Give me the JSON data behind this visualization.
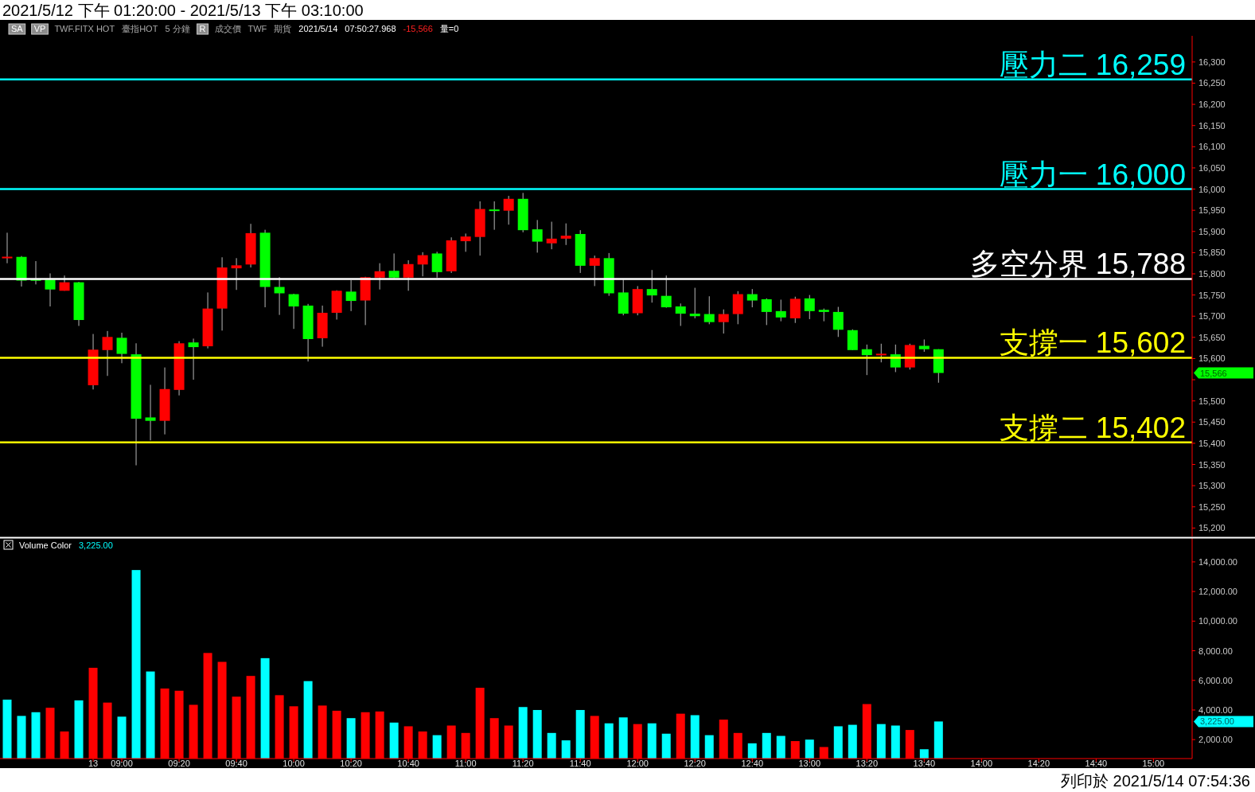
{
  "chart_data": [
    {
      "type": "candlestick",
      "title": "2021/5/12 下午 01:20:00 - 2021/5/13 下午 03:10:00",
      "categories": [
        null,
        null,
        null,
        null,
        null,
        null,
        null,
        null,
        null,
        null,
        null,
        null,
        null,
        null,
        null,
        null,
        null,
        null,
        null,
        null,
        null,
        null,
        null,
        null,
        null,
        null,
        null,
        null,
        null,
        null,
        null,
        null,
        null,
        null,
        null,
        null,
        null,
        null,
        null,
        null,
        null,
        null,
        null,
        null,
        null,
        null,
        null,
        null,
        null,
        null,
        null,
        null,
        null,
        null,
        null,
        null,
        null,
        null,
        null,
        null,
        null,
        null,
        null,
        null,
        null,
        null,
        null,
        null,
        null,
        null,
        null,
        null,
        null,
        null,
        null,
        null,
        null,
        null,
        null,
        null,
        null,
        null,
        null
      ],
      "ohlc": [
        [
          15838,
          15897,
          15825,
          15839
        ],
        [
          15840,
          15842,
          15770,
          15784
        ],
        [
          15786,
          15830,
          15775,
          15785
        ],
        [
          15786,
          15801,
          15723,
          15763
        ],
        [
          15760,
          15796,
          15760,
          15780
        ],
        [
          15780,
          15781,
          15677,
          15691
        ],
        [
          15537,
          15658,
          15527,
          15621
        ],
        [
          15620,
          15665,
          15559,
          15651
        ],
        [
          15649,
          15661,
          15589,
          15611
        ],
        [
          15610,
          15636,
          15348,
          15458
        ],
        [
          15461,
          15538,
          15407,
          15453
        ],
        [
          15453,
          15579,
          15421,
          15528
        ],
        [
          15526,
          15641,
          15513,
          15636
        ],
        [
          15638,
          15647,
          15550,
          15627
        ],
        [
          15629,
          15756,
          15624,
          15718
        ],
        [
          15718,
          15839,
          15666,
          15815
        ],
        [
          15813,
          15837,
          15762,
          15820
        ],
        [
          15822,
          15918,
          15815,
          15896
        ],
        [
          15897,
          15904,
          15721,
          15769
        ],
        [
          15769,
          15792,
          15703,
          15754
        ],
        [
          15752,
          15753,
          15670,
          15723
        ],
        [
          15725,
          15729,
          15593,
          15646
        ],
        [
          15648,
          15725,
          15628,
          15708
        ],
        [
          15708,
          15761,
          15692,
          15760
        ],
        [
          15758,
          15785,
          15712,
          15736
        ],
        [
          15737,
          15793,
          15679,
          15792
        ],
        [
          15791,
          15825,
          15763,
          15806
        ],
        [
          15807,
          15848,
          15790,
          15791
        ],
        [
          15791,
          15832,
          15760,
          15823
        ],
        [
          15822,
          15851,
          15794,
          15844
        ],
        [
          15848,
          15852,
          15791,
          15804
        ],
        [
          15806,
          15886,
          15802,
          15879
        ],
        [
          15877,
          15895,
          15852,
          15888
        ],
        [
          15887,
          15971,
          15843,
          15953
        ],
        [
          15951,
          15971,
          15904,
          15949
        ],
        [
          15949,
          15984,
          15916,
          15977
        ],
        [
          15977,
          15991,
          15898,
          15903
        ],
        [
          15905,
          15927,
          15850,
          15876
        ],
        [
          15872,
          15923,
          15858,
          15883
        ],
        [
          15883,
          15919,
          15868,
          15890
        ],
        [
          15894,
          15903,
          15802,
          15819
        ],
        [
          15819,
          15843,
          15771,
          15837
        ],
        [
          15837,
          15849,
          15748,
          15754
        ],
        [
          15756,
          15786,
          15702,
          15706
        ],
        [
          15707,
          15771,
          15702,
          15764
        ],
        [
          15764,
          15809,
          15732,
          15749
        ],
        [
          15748,
          15796,
          15720,
          15721
        ],
        [
          15723,
          15730,
          15677,
          15706
        ],
        [
          15706,
          15767,
          15695,
          15700
        ],
        [
          15705,
          15747,
          15681,
          15686
        ],
        [
          15686,
          15716,
          15659,
          15705
        ],
        [
          15705,
          15759,
          15681,
          15752
        ],
        [
          15752,
          15764,
          15721,
          15737
        ],
        [
          15740,
          15742,
          15679,
          15710
        ],
        [
          15712,
          15739,
          15688,
          15697
        ],
        [
          15695,
          15746,
          15684,
          15741
        ],
        [
          15742,
          15750,
          15693,
          15712
        ],
        [
          15715,
          15718,
          15688,
          15710
        ],
        [
          15710,
          15722,
          15651,
          15668
        ],
        [
          15667,
          15669,
          15620,
          15620
        ],
        [
          15622,
          15633,
          15561,
          15608
        ],
        [
          15608,
          15635,
          15591,
          15611
        ],
        [
          15610,
          15633,
          15568,
          15579
        ],
        [
          15579,
          15635,
          15574,
          15632
        ],
        [
          15630,
          15645,
          15616,
          15622
        ],
        [
          15622,
          15622,
          15543,
          15566
        ],
        null,
        null,
        null,
        null,
        null,
        null,
        null,
        null,
        null,
        null,
        null,
        null,
        null,
        null,
        null,
        null,
        null
      ],
      "colors": [
        "#ff0000",
        "#00ff00",
        "#00ff00",
        "#00ff00",
        "#ff0000",
        "#00ff00",
        "#ff0000",
        "#ff0000",
        "#00ff00",
        "#00ff00",
        "#00ff00",
        "#ff0000",
        "#ff0000",
        "#00ff00",
        "#ff0000",
        "#ff0000",
        "#ff0000",
        "#ff0000",
        "#00ff00",
        "#00ff00",
        "#00ff00",
        "#00ff00",
        "#ff0000",
        "#ff0000",
        "#00ff00",
        "#ff0000",
        "#ff0000",
        "#00ff00",
        "#ff0000",
        "#ff0000",
        "#00ff00",
        "#ff0000",
        "#ff0000",
        "#ff0000",
        "#00ff00",
        "#ff0000",
        "#00ff00",
        "#00ff00",
        "#ff0000",
        "#ff0000",
        "#00ff00",
        "#ff0000",
        "#00ff00",
        "#00ff00",
        "#ff0000",
        "#00ff00",
        "#00ff00",
        "#00ff00",
        "#00ff00",
        "#00ff00",
        "#ff0000",
        "#ff0000",
        "#00ff00",
        "#00ff00",
        "#00ff00",
        "#ff0000",
        "#00ff00",
        "#00ff00",
        "#00ff00",
        "#00ff00",
        "#00ff00",
        "#ff0000",
        "#00ff00",
        "#ff0000",
        "#00ff00",
        "#00ff00",
        null,
        null,
        null,
        null,
        null,
        null,
        null,
        null,
        null,
        null,
        null,
        null,
        null,
        null,
        null,
        null,
        null
      ],
      "ylim": [
        15180,
        16358
      ],
      "yticks": [
        {
          "value": 15200,
          "label": "15,200"
        },
        {
          "value": 15250,
          "label": "15,250"
        },
        {
          "value": 15300,
          "label": "15,300"
        },
        {
          "value": 15350,
          "label": "15,350"
        },
        {
          "value": 15400,
          "label": "15,400"
        },
        {
          "value": 15450,
          "label": "15,450"
        },
        {
          "value": 15500,
          "label": "15,500"
        },
        {
          "value": 15550,
          "label": null
        },
        {
          "value": 15600,
          "label": "15,600"
        },
        {
          "value": 15650,
          "label": "15,650"
        },
        {
          "value": 15700,
          "label": "15,700"
        },
        {
          "value": 15750,
          "label": "15,750"
        },
        {
          "value": 15800,
          "label": "15,800"
        },
        {
          "value": 15850,
          "label": "15,850"
        },
        {
          "value": 15900,
          "label": "15,900"
        },
        {
          "value": 15950,
          "label": "15,950"
        },
        {
          "value": 16000,
          "label": "16,000"
        },
        {
          "value": 16050,
          "label": "16,050"
        },
        {
          "value": 16100,
          "label": "16,100"
        },
        {
          "value": 16150,
          "label": "16,150"
        },
        {
          "value": 16200,
          "label": "16,200"
        },
        {
          "value": 16250,
          "label": "16,250"
        },
        {
          "value": 16300,
          "label": "16,300"
        }
      ],
      "tick_labels": "y",
      "ref_lines": [
        {
          "axis": "y",
          "value": 16259,
          "label": "壓力二 16,259",
          "color": "#00ffff"
        },
        {
          "axis": "y",
          "value": 16000,
          "label": "壓力一 16,000",
          "color": "#00ffff"
        },
        {
          "axis": "y",
          "value": 15788,
          "label": "多空分界 15,788",
          "color": "#ffffff"
        },
        {
          "axis": "y",
          "value": 15602,
          "label": "支撐一 15,602",
          "color": "#ffff00"
        },
        {
          "axis": "y",
          "value": 15402,
          "label": "支撐二 15,402",
          "color": "#ffff00"
        }
      ],
      "annotations": [
        "SA",
        "VP",
        "TWF.FITX HOT",
        "臺指HOT",
        "5 分鐘",
        "R",
        "成交價",
        "TWF",
        "期貨",
        "2021/5/14",
        "07:50:27.968",
        "-15,566",
        "量=0",
        "15,566"
      ]
    },
    {
      "type": "bar",
      "categories": [
        null,
        null,
        null,
        null,
        null,
        null,
        "13",
        null,
        "09:00",
        null,
        null,
        null,
        "09:20",
        null,
        null,
        null,
        "09:40",
        null,
        null,
        null,
        "10:00",
        null,
        null,
        null,
        "10:20",
        null,
        null,
        null,
        "10:40",
        null,
        null,
        null,
        "11:00",
        null,
        null,
        null,
        "11:20",
        null,
        null,
        null,
        "11:40",
        null,
        null,
        null,
        "12:00",
        null,
        null,
        null,
        "12:20",
        null,
        null,
        null,
        "12:40",
        null,
        null,
        null,
        "13:00",
        null,
        null,
        null,
        "13:20",
        null,
        null,
        null,
        "13:40",
        null,
        null,
        null,
        "14:00",
        null,
        null,
        null,
        "14:20",
        null,
        null,
        null,
        "14:40",
        null,
        null,
        null,
        "15:00",
        null,
        null
      ],
      "values": [
        4700,
        3600,
        3850,
        4150,
        2550,
        4650,
        6850,
        4500,
        3550,
        13450,
        6600,
        5450,
        5300,
        4350,
        7850,
        7250,
        4900,
        6300,
        7500,
        5000,
        4250,
        5950,
        4300,
        3950,
        3450,
        3850,
        3900,
        3150,
        2900,
        2550,
        2300,
        2950,
        2450,
        5500,
        3450,
        2950,
        4200,
        4000,
        2450,
        1950,
        4000,
        3600,
        3100,
        3500,
        3050,
        3100,
        2400,
        3750,
        3650,
        2300,
        3350,
        2450,
        1750,
        2450,
        2250,
        1900,
        2000,
        1500,
        2900,
        3000,
        4400,
        3050,
        2950,
        2650,
        1350,
        3225,
        null,
        null,
        null,
        null,
        null,
        null,
        null,
        null,
        null,
        null,
        null,
        null,
        null,
        null,
        null,
        null,
        null
      ],
      "colors": [
        "#00ffff",
        "#00ffff",
        "#00ffff",
        "#ff0000",
        "#ff0000",
        "#00ffff",
        "#ff0000",
        "#ff0000",
        "#00ffff",
        "#00ffff",
        "#00ffff",
        "#ff0000",
        "#ff0000",
        "#ff0000",
        "#ff0000",
        "#ff0000",
        "#ff0000",
        "#ff0000",
        "#00ffff",
        "#ff0000",
        "#ff0000",
        "#00ffff",
        "#ff0000",
        "#ff0000",
        "#00ffff",
        "#ff0000",
        "#ff0000",
        "#00ffff",
        "#ff0000",
        "#ff0000",
        "#00ffff",
        "#ff0000",
        "#ff0000",
        "#ff0000",
        "#ff0000",
        "#ff0000",
        "#00ffff",
        "#00ffff",
        "#00ffff",
        "#00ffff",
        "#00ffff",
        "#ff0000",
        "#00ffff",
        "#00ffff",
        "#ff0000",
        "#00ffff",
        "#00ffff",
        "#ff0000",
        "#00ffff",
        "#00ffff",
        "#ff0000",
        "#ff0000",
        "#00ffff",
        "#00ffff",
        "#00ffff",
        "#ff0000",
        "#00ffff",
        "#ff0000",
        "#00ffff",
        "#00ffff",
        "#ff0000",
        "#00ffff",
        "#00ffff",
        "#ff0000",
        "#00ffff",
        "#00ffff",
        null,
        null,
        null,
        null,
        null,
        null,
        null,
        null,
        null,
        null,
        null,
        null,
        null,
        null,
        null,
        null,
        null
      ],
      "ylim": [
        720,
        15500
      ],
      "yticks": [
        {
          "value": 2000,
          "label": "2,000.00"
        },
        {
          "value": 4000,
          "label": "4,000.00"
        },
        {
          "value": 6000,
          "label": "6,000.00"
        },
        {
          "value": 8000,
          "label": "8,000.00"
        },
        {
          "value": 10000,
          "label": "10,000.00"
        },
        {
          "value": 12000,
          "label": "12,000.00"
        },
        {
          "value": 14000,
          "label": "14,000.00"
        }
      ],
      "annotations": [
        "Volume Color",
        "3,225.00",
        "3,225.00",
        "列印於 2021/5/14 07:54:36"
      ]
    }
  ]
}
